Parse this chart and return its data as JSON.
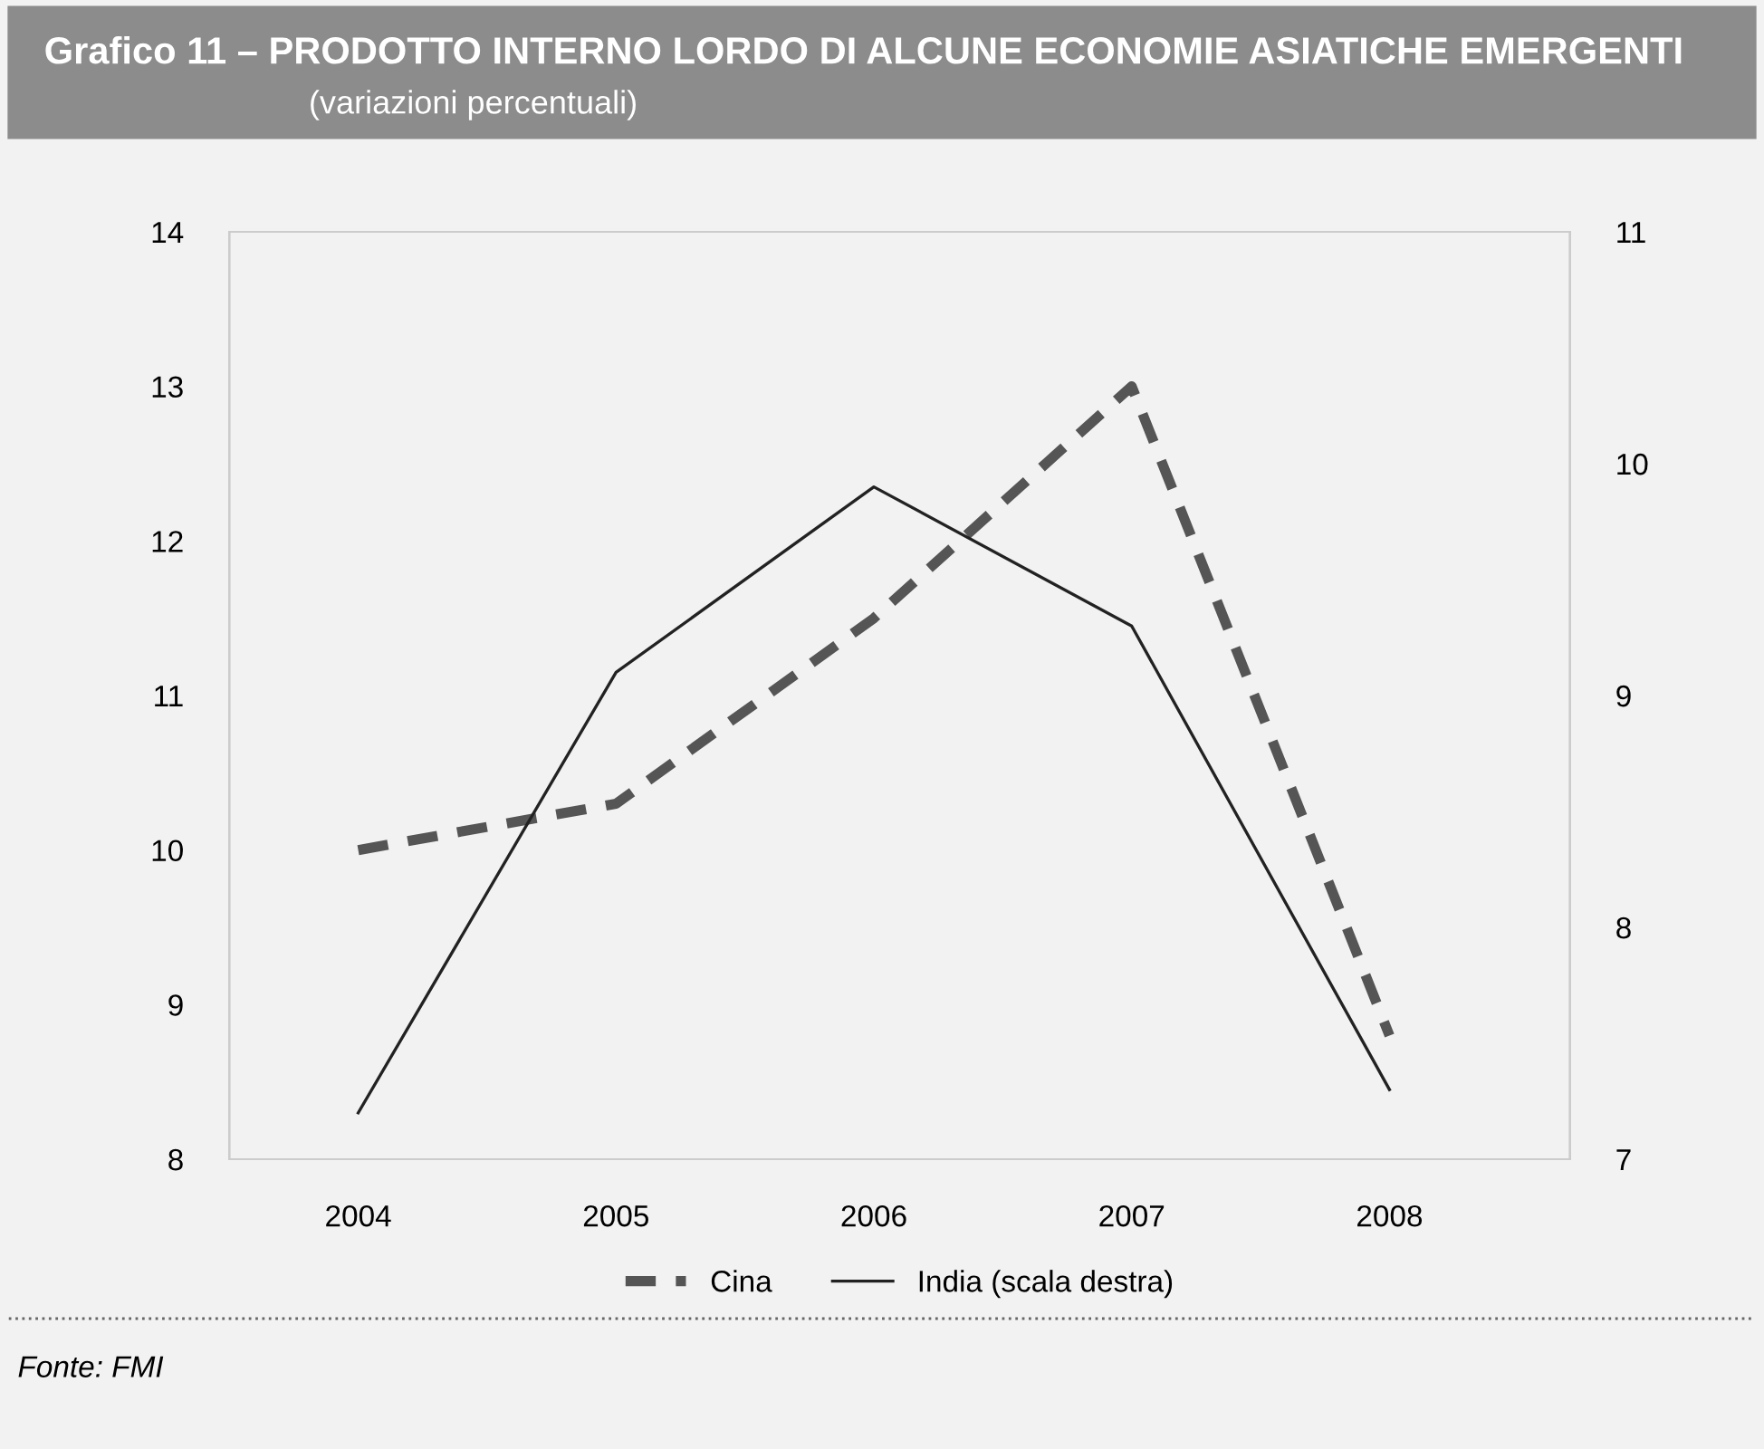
{
  "chart_data": {
    "type": "line",
    "title": "Grafico 11 – PRODOTTO INTERNO LORDO DI ALCUNE ECONOMIE ASIATICHE EMERGENTI",
    "subtitle": "(variazioni percentuali)",
    "categories": [
      "2004",
      "2005",
      "2006",
      "2007",
      "2008"
    ],
    "series": [
      {
        "name": "Cina",
        "color": "#555555",
        "line_style": "dashed",
        "values": [
          10.0,
          10.3,
          11.5,
          13.0,
          8.8
        ]
      },
      {
        "name": "India (scala destra)",
        "color": "#222222",
        "line_style": "solid",
        "axis": "y2",
        "values": [
          7.2,
          9.1,
          9.9,
          9.3,
          7.3
        ]
      }
    ],
    "ylim": [
      8,
      14
    ],
    "yticks": [
      8,
      9,
      10,
      11,
      12,
      13,
      14
    ],
    "y2lim": [
      7,
      11
    ],
    "y2ticks": [
      7,
      8,
      9,
      10,
      11
    ],
    "grid": false,
    "legend": "bottom",
    "marker": "none",
    "annotations": [
      "Fonte: FMI"
    ]
  }
}
